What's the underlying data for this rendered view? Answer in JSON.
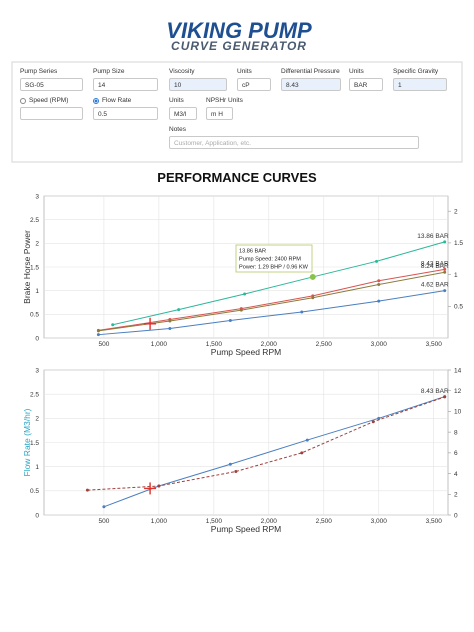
{
  "header": {
    "brand": "VIKING PUMP",
    "subtitle": "CURVE GENERATOR"
  },
  "form": {
    "pump_series": {
      "label": "Pump Series",
      "value": "SG-05"
    },
    "pump_size": {
      "label": "Pump Size",
      "value": "14"
    },
    "viscosity": {
      "label": "Viscosity",
      "value": "10"
    },
    "viscosity_units": {
      "label": "Units",
      "value": "cP"
    },
    "differential_pressure": {
      "label": "Differential Pressure",
      "value": "8.43"
    },
    "pressure_units": {
      "label": "Units",
      "value": "BAR"
    },
    "specific_gravity": {
      "label": "Specific Gravity",
      "value": "1"
    },
    "speed": {
      "label": "Speed (RPM)",
      "value": ""
    },
    "flow_rate": {
      "label": "Flow Rate",
      "value": "0.5"
    },
    "flow_units": {
      "label": "Units",
      "value": "M3/l"
    },
    "npshr_units": {
      "label": "NPSHr Units",
      "value": "m H"
    },
    "notes": {
      "label": "Notes",
      "placeholder": "Customer, Application, etc."
    }
  },
  "section_title": "PERFORMANCE CURVES",
  "chart_data": [
    {
      "type": "line",
      "x_label": "Pump Speed RPM",
      "y_label": "Brake Horse Power",
      "y_label_color": "#333333",
      "xlim": [
        -45,
        3630
      ],
      "xticks": [
        500,
        {
          "value": 1000,
          "label": "1,000"
        },
        {
          "value": 1500,
          "label": "1,500"
        },
        {
          "value": 2000,
          "label": "2,000"
        },
        {
          "value": 2500,
          "label": "2,500"
        },
        {
          "value": 3000,
          "label": "3,000"
        },
        {
          "value": 3500,
          "label": "3,500"
        }
      ],
      "ylim": [
        0,
        3
      ],
      "yticks": [
        0,
        0.5,
        1,
        1.5,
        2,
        2.5,
        3
      ],
      "y2lim": [
        0,
        2.24
      ],
      "y2ticks": [
        0.5,
        1,
        1.5,
        2
      ],
      "grid": true,
      "series": [
        {
          "name": "13.86 BAR",
          "color": "#2bb79c",
          "x": [
            580,
            1180,
            1780,
            2400,
            2980,
            3600
          ],
          "values": [
            0.28,
            0.6,
            0.93,
            1.29,
            1.62,
            2.03
          ]
        },
        {
          "name": "8.43 BAR",
          "color": "#d9534f",
          "x": [
            450,
            1100,
            1750,
            2400,
            3000,
            3600
          ],
          "values": [
            0.16,
            0.39,
            0.62,
            0.89,
            1.21,
            1.45
          ]
        },
        {
          "name": "8.24 BAR",
          "color": "#8c7b3c",
          "x": [
            450,
            1100,
            1750,
            2400,
            3000,
            3600
          ],
          "values": [
            0.15,
            0.36,
            0.59,
            0.85,
            1.13,
            1.39
          ]
        },
        {
          "name": "4.62 BAR",
          "color": "#4a7fc0",
          "x": [
            450,
            1100,
            1650,
            2300,
            3000,
            3600
          ],
          "values": [
            0.07,
            0.2,
            0.37,
            0.55,
            0.78,
            1.0
          ]
        }
      ],
      "operating_point": {
        "x": 920,
        "y": 0.3,
        "color": "#e0312b"
      },
      "tooltip": {
        "lines": [
          "13.86 BAR",
          "Pump Speed: 2400 RPM",
          "Power: 1.29 BHP / 0.96 KW"
        ]
      }
    },
    {
      "type": "line",
      "x_label": "Pump Speed RPM",
      "y_label": "Flow Rate (M3/hr)",
      "y_label_color": "#2aa6c4",
      "xlim": [
        -45,
        3630
      ],
      "xticks": [
        500,
        {
          "value": 1000,
          "label": "1,000"
        },
        {
          "value": 1500,
          "label": "1,500"
        },
        {
          "value": 2000,
          "label": "2,000"
        },
        {
          "value": 2500,
          "label": "2,500"
        },
        {
          "value": 3000,
          "label": "3,000"
        },
        {
          "value": 3500,
          "label": "3,500"
        }
      ],
      "ylim": [
        0,
        3
      ],
      "yticks": [
        0,
        0.5,
        1,
        1.5,
        2,
        2.5,
        3
      ],
      "y2lim": [
        0,
        14
      ],
      "y2ticks": [
        0,
        2,
        4,
        6,
        8,
        10,
        12,
        14
      ],
      "grid": true,
      "series": [
        {
          "name": "Flow Rate (M3/hr)",
          "color": "#4a7fc0",
          "x": [
            500,
            1000,
            1650,
            2350,
            3000,
            3600
          ],
          "values": [
            0.17,
            0.6,
            1.05,
            1.55,
            2.0,
            2.45
          ]
        },
        {
          "name": "8.43 BAR",
          "color": "#a0403c",
          "axis": "y2",
          "dashed": true,
          "x": [
            350,
            1000,
            1700,
            2300,
            2950,
            3600
          ],
          "values": [
            2.4,
            2.8,
            4.2,
            6.0,
            9.0,
            11.4
          ]
        }
      ],
      "operating_point": {
        "x": 920,
        "y": 0.55,
        "color": "#e0312b"
      }
    }
  ]
}
